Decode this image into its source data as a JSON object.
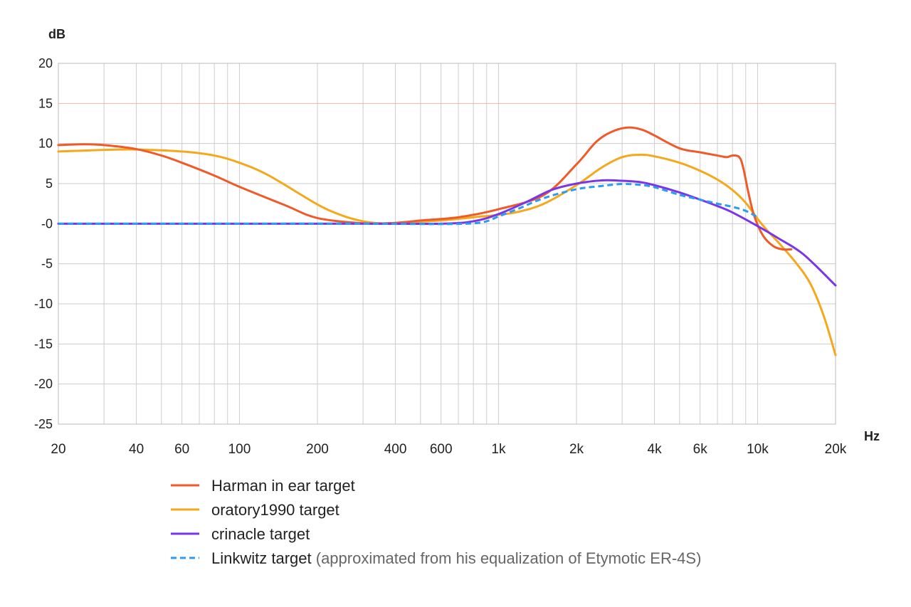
{
  "chart_data": {
    "type": "line",
    "ylabel": "dB",
    "xlabel": "Hz",
    "x_scale": "log",
    "xlim": [
      20,
      20000
    ],
    "ylim": [
      -25,
      20
    ],
    "grid": true,
    "legend_position": "bottom",
    "y_ticks": [
      20,
      15,
      10,
      5,
      0,
      -5,
      -10,
      -15,
      -20,
      -25
    ],
    "y_tick_labels": [
      "20",
      "15",
      "10",
      "5",
      "-0",
      "-5",
      "-10",
      "-15",
      "-20",
      "-25"
    ],
    "x_ticks": [
      20,
      40,
      60,
      100,
      200,
      400,
      600,
      1000,
      2000,
      4000,
      6000,
      10000,
      20000
    ],
    "x_tick_labels": [
      "20",
      "40",
      "60",
      "100",
      "200",
      "400",
      "600",
      "1k",
      "2k",
      "4k",
      "6k",
      "10k",
      "20k"
    ],
    "highlight_line": {
      "y": 15,
      "color": "#e6b8a8"
    },
    "series": [
      {
        "name": "Harman in ear target",
        "color": "#f05a28",
        "dash": false,
        "points": [
          [
            20,
            9.8
          ],
          [
            25,
            9.9
          ],
          [
            30,
            9.8
          ],
          [
            40,
            9.3
          ],
          [
            50,
            8.5
          ],
          [
            60,
            7.6
          ],
          [
            80,
            6
          ],
          [
            100,
            4.6
          ],
          [
            150,
            2.3
          ],
          [
            200,
            0.7
          ],
          [
            300,
            0.05
          ],
          [
            400,
            0.1
          ],
          [
            500,
            0.4
          ],
          [
            700,
            0.8
          ],
          [
            1000,
            1.8
          ],
          [
            1500,
            3.6
          ],
          [
            2000,
            7.4
          ],
          [
            2400,
            10.3
          ],
          [
            2800,
            11.6
          ],
          [
            3200,
            12
          ],
          [
            3600,
            11.7
          ],
          [
            4000,
            11
          ],
          [
            5000,
            9.4
          ],
          [
            6000,
            8.9
          ],
          [
            7000,
            8.5
          ],
          [
            7600,
            8.3
          ],
          [
            8000,
            8.5
          ],
          [
            8500,
            8.3
          ],
          [
            8800,
            7
          ],
          [
            9200,
            4
          ],
          [
            9700,
            1
          ],
          [
            10500,
            -1.5
          ],
          [
            11500,
            -2.8
          ],
          [
            12500,
            -3.2
          ],
          [
            13500,
            -3.2
          ]
        ]
      },
      {
        "name": "oratory1990 target",
        "color": "#f6a81c",
        "dash": false,
        "points": [
          [
            20,
            9
          ],
          [
            30,
            9.2
          ],
          [
            40,
            9.25
          ],
          [
            60,
            9
          ],
          [
            80,
            8.5
          ],
          [
            100,
            7.6
          ],
          [
            130,
            6
          ],
          [
            200,
            2.4
          ],
          [
            250,
            1
          ],
          [
            300,
            0.3
          ],
          [
            350,
            0.05
          ],
          [
            400,
            0.1
          ],
          [
            600,
            0.4
          ],
          [
            800,
            0.8
          ],
          [
            1000,
            1.1
          ],
          [
            1200,
            1.5
          ],
          [
            1500,
            2.5
          ],
          [
            2000,
            4.8
          ],
          [
            2500,
            7
          ],
          [
            3000,
            8.3
          ],
          [
            3500,
            8.6
          ],
          [
            4000,
            8.4
          ],
          [
            5000,
            7.6
          ],
          [
            6000,
            6.6
          ],
          [
            7000,
            5.5
          ],
          [
            8000,
            4.2
          ],
          [
            9000,
            2.6
          ],
          [
            10000,
            0.6
          ],
          [
            11000,
            -1
          ],
          [
            12000,
            -2.3
          ],
          [
            14000,
            -4.8
          ],
          [
            16000,
            -7.5
          ],
          [
            18000,
            -11.5
          ],
          [
            20000,
            -16.4
          ]
        ]
      },
      {
        "name": "crinacle target",
        "color": "#7b35e8",
        "dash": false,
        "points": [
          [
            20,
            0
          ],
          [
            100,
            0
          ],
          [
            300,
            0
          ],
          [
            600,
            0
          ],
          [
            800,
            0.3
          ],
          [
            1000,
            1.2
          ],
          [
            1300,
            2.8
          ],
          [
            1600,
            4.2
          ],
          [
            2000,
            5
          ],
          [
            2500,
            5.4
          ],
          [
            3000,
            5.35
          ],
          [
            3500,
            5.2
          ],
          [
            4000,
            4.8
          ],
          [
            5000,
            3.9
          ],
          [
            6000,
            3
          ],
          [
            7000,
            2.2
          ],
          [
            8000,
            1.4
          ],
          [
            10000,
            -0.3
          ],
          [
            12000,
            -1.8
          ],
          [
            15000,
            -3.8
          ],
          [
            20000,
            -7.7
          ]
        ]
      },
      {
        "name": "Linkwitz target",
        "color": "#2b9bf4",
        "dash": true,
        "points": [
          [
            20,
            0
          ],
          [
            100,
            0
          ],
          [
            300,
            0
          ],
          [
            600,
            -0.05
          ],
          [
            800,
            0.05
          ],
          [
            900,
            0.3
          ],
          [
            1000,
            0.9
          ],
          [
            1200,
            1.9
          ],
          [
            1500,
            3.2
          ],
          [
            2000,
            4.3
          ],
          [
            2500,
            4.7
          ],
          [
            3000,
            4.95
          ],
          [
            3500,
            4.85
          ],
          [
            4000,
            4.55
          ],
          [
            5000,
            3.6
          ],
          [
            6000,
            3
          ],
          [
            7000,
            2.5
          ],
          [
            8000,
            2.1
          ],
          [
            9000,
            1.6
          ],
          [
            10000,
            0.8
          ]
        ]
      }
    ],
    "legend": [
      {
        "label": "Harman in ear target",
        "note": ""
      },
      {
        "label": "oratory1990 target",
        "note": ""
      },
      {
        "label": "crinacle target",
        "note": ""
      },
      {
        "label": "Linkwitz target",
        "note": "(approximated from his equalization of Etymotic ER-4S)"
      }
    ]
  }
}
